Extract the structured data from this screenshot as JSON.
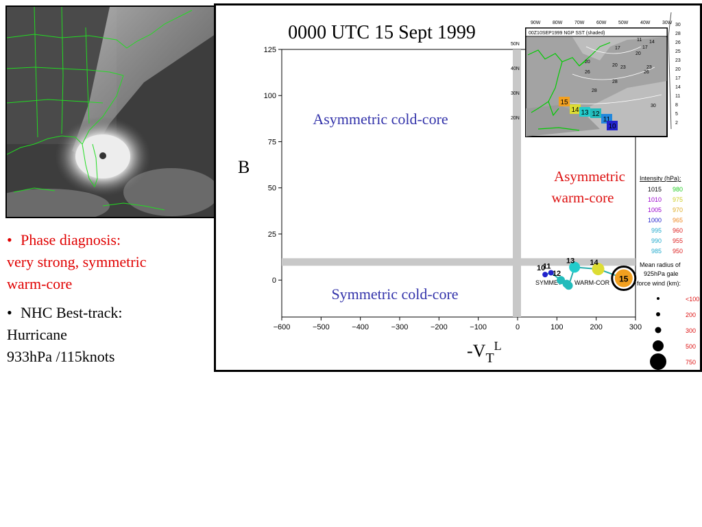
{
  "title": "0000 UTC 15 Sept 1999",
  "bullets": [
    {
      "lines": [
        "Phase diagnosis:",
        "very strong, symmetric",
        "warm-core"
      ]
    },
    {
      "lines": [
        "NHC Best-track:",
        "Hurricane",
        "933hPa /115knots"
      ]
    }
  ],
  "regions": {
    "asym_cold": "Asymmetric cold-core",
    "asym_warm_1": "Asymmetric",
    "asym_warm_2": "warm-core",
    "sym_cold": "Symmetric cold-core",
    "sym_warm_1": "SYMMET",
    "sym_warm_2": "WARM-COR"
  },
  "colors": {
    "asym_cold": "#3333aa",
    "asym_warm": "#dd1111",
    "sym_cold": "#3333aa",
    "bullet_red": "#e00000",
    "divider": "#c8c8c8",
    "coast": "#22dd22"
  },
  "chart_data": {
    "type": "scatter",
    "title": "0000 UTC 15 Sept 1999",
    "xlabel_main": "-V",
    "xlabel_sub": "T",
    "xlabel_sup": "L",
    "ylabel": "B",
    "xlim": [
      -600,
      300
    ],
    "ylim": [
      -20,
      125
    ],
    "xticks": [
      -600,
      -500,
      -400,
      -300,
      -200,
      -100,
      0,
      100,
      200,
      300
    ],
    "yticks": [
      0,
      25,
      50,
      75,
      100,
      125
    ],
    "xtick_labels": [
      "−600",
      "−500",
      "−400",
      "−300",
      "−200",
      "−100",
      "0",
      "100",
      "200",
      "300"
    ],
    "ytick_labels": [
      "0",
      "25",
      "50",
      "75",
      "100",
      "125"
    ],
    "dividers": {
      "x": 0,
      "y": 10
    },
    "track": [
      {
        "label": "10",
        "x": 70,
        "y": 3,
        "color": "#2222cc",
        "r": 4
      },
      {
        "label": "11",
        "x": 85,
        "y": 4,
        "color": "#2222cc",
        "r": 4
      },
      {
        "label": "12",
        "x": 110,
        "y": 0,
        "color": "#22bbbb",
        "r": 6
      },
      {
        "label": "",
        "x": 125,
        "y": -2,
        "color": "#22bbbb",
        "r": 6
      },
      {
        "label": "",
        "x": 130,
        "y": -3,
        "color": "#22bbbb",
        "r": 6
      },
      {
        "label": "13",
        "x": 145,
        "y": 7,
        "color": "#22cccc",
        "r": 8
      },
      {
        "label": "14",
        "x": 205,
        "y": 6,
        "color": "#dddd33",
        "r": 9
      },
      {
        "label": "15",
        "x": 270,
        "y": 1,
        "color": "#f2a020",
        "r": 13
      }
    ],
    "current_label": "15"
  },
  "inset": {
    "title": "00Z10SEP1999 NGP SST (shaded)",
    "lon_labels": [
      "90W",
      "80W",
      "70W",
      "60W",
      "50W",
      "40W",
      "30W"
    ],
    "lat_labels": [
      "50N",
      "40N",
      "30N",
      "20N"
    ],
    "scale": [
      "30",
      "28",
      "26",
      "25",
      "23",
      "20",
      "17",
      "14",
      "11",
      "8",
      "5",
      "2"
    ],
    "iso_labels": [
      "11",
      "14",
      "17",
      "17",
      "20",
      "20",
      "20",
      "23",
      "23",
      "26",
      "26",
      "28",
      "28",
      "30",
      "30"
    ],
    "track_labels": [
      "15",
      "14",
      "13",
      "12",
      "11",
      "10"
    ]
  },
  "legend": {
    "intensity_title": "Intensity (hPa):",
    "intensity_col1": [
      "1015",
      "1010",
      "1005",
      "1000",
      "995",
      "990",
      "985"
    ],
    "intensity_col2": [
      "980",
      "975",
      "970",
      "965",
      "960",
      "955",
      "950"
    ],
    "col1_colors": [
      "#000000",
      "#9900cc",
      "#9900cc",
      "#2222cc",
      "#22aacc",
      "#22aacc",
      "#22aacc"
    ],
    "col2_colors": [
      "#22cc22",
      "#cccc22",
      "#ddaa22",
      "#ee8822",
      "#dd2222",
      "#dd2222",
      "#dd2222"
    ],
    "radius_title_1": "Mean radius of",
    "radius_title_2": "925hPa gale",
    "radius_title_3": "force wind (km):",
    "radius_values": [
      "<100",
      "200",
      "300",
      "500",
      "750"
    ]
  }
}
